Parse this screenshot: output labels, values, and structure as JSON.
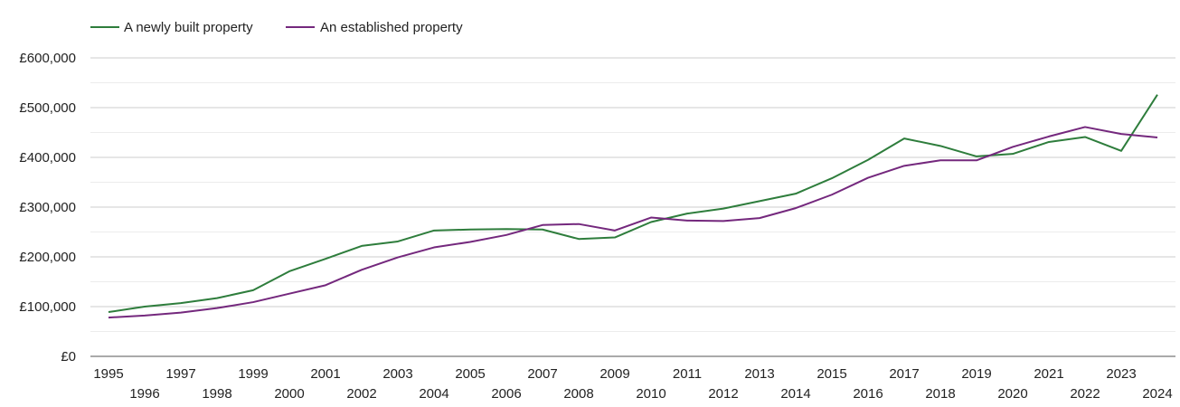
{
  "chart_data": {
    "type": "line",
    "title": "",
    "xlabel": "",
    "ylabel": "",
    "x": [
      "1995",
      "1996",
      "1997",
      "1998",
      "1999",
      "2000",
      "2001",
      "2002",
      "2003",
      "2004",
      "2005",
      "2006",
      "2007",
      "2008",
      "2009",
      "2010",
      "2011",
      "2012",
      "2013",
      "2014",
      "2015",
      "2016",
      "2017",
      "2018",
      "2019",
      "2020",
      "2021",
      "2022",
      "2023",
      "2024"
    ],
    "ylim": [
      0,
      600000
    ],
    "yticks": [
      0,
      100000,
      200000,
      300000,
      400000,
      500000,
      600000
    ],
    "ytick_labels": [
      "£0",
      "£100,000",
      "£200,000",
      "£300,000",
      "£400,000",
      "£500,000",
      "£600,000"
    ],
    "grid": true,
    "legend_position": "top-left",
    "series": [
      {
        "name": "A newly built property",
        "color": "#2e7d3c",
        "values": [
          89000,
          100000,
          107000,
          117000,
          133000,
          171000,
          196000,
          222000,
          231000,
          253000,
          255000,
          256000,
          255000,
          236000,
          239000,
          270000,
          287000,
          297000,
          312000,
          327000,
          358000,
          395000,
          438000,
          423000,
          402000,
          407000,
          431000,
          441000,
          413000,
          526000
        ]
      },
      {
        "name": "An established property",
        "color": "#74287d",
        "values": [
          78000,
          82000,
          88000,
          97000,
          109000,
          126000,
          143000,
          174000,
          199000,
          219000,
          230000,
          244000,
          264000,
          266000,
          253000,
          279000,
          273000,
          272000,
          278000,
          298000,
          325000,
          359000,
          383000,
          394000,
          394000,
          421000,
          442000,
          461000,
          447000,
          440000
        ]
      }
    ]
  }
}
